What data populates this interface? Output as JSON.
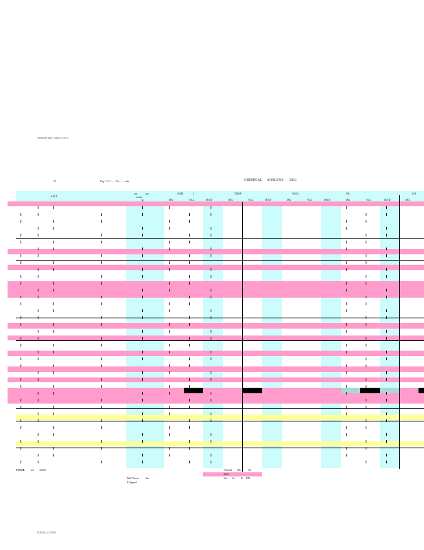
{
  "page": {
    "top_stamp": "CHEMISTRY GRID 3 OF 3",
    "left_code": "33",
    "page_info": "Pag  1  2  3 ...... Tio ...... ode",
    "title": "CHEMICAL",
    "title2": "ANALYSIS",
    "year": "2024",
    "footer_time": "8/20/26 3:47 PM"
  },
  "header": {
    "col_sample": "SALT",
    "col_group1a": "mi",
    "col_group1b": "acr",
    "col_group1c": "ocum",
    "col_n": "W",
    "groups": [
      "JAIM",
      "I",
      "TEMP",
      "MAG",
      "NIL",
      "IM"
    ],
    "sub": [
      "MG",
      "+ILL",
      "MAD",
      "MG",
      "+ILL",
      "MAD",
      "MG",
      "+ILL",
      "MAD",
      "MG",
      "+ILL",
      "MAD",
      "MG"
    ]
  },
  "summary": {
    "total_label": "TOTAL",
    "total_a": "44",
    "total_b": "10056",
    "diff_label": "Diff Norm",
    "diff_val": "3m",
    "signed_label": "F Signed",
    "normal_label": "Normal",
    "normal_a": "Bb",
    "normal_b": "0b",
    "mult_label": "Mult",
    "mult_vals": [
      "Sin",
      "3a",
      "B",
      "BB"
    ]
  },
  "colors": {
    "pink": "#ff9ccc",
    "cyan": "#ccfcfc",
    "yellow": "#ffff99",
    "black": "#000000",
    "gray_cyan": "#a8d8d8"
  }
}
